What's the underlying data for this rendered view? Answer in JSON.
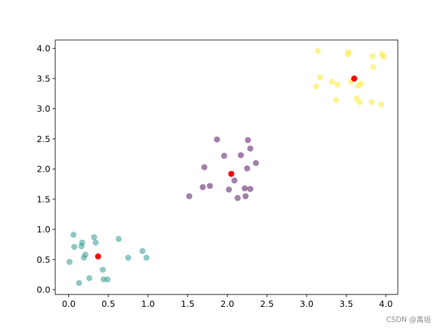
{
  "chart_data": {
    "type": "scatter",
    "title": "",
    "xlabel": "",
    "ylabel": "",
    "xlim": [
      -0.17,
      4.15
    ],
    "ylim": [
      -0.08,
      4.14
    ],
    "xticks": [
      "0.0",
      "0.5",
      "1.0",
      "1.5",
      "2.0",
      "2.5",
      "3.0",
      "3.5",
      "4.0"
    ],
    "yticks": [
      "0.0",
      "0.5",
      "1.0",
      "1.5",
      "2.0",
      "2.5",
      "3.0",
      "3.5",
      "4.0"
    ],
    "grid": false,
    "legend": "none",
    "series": [
      {
        "color": "#21918c",
        "opacity": 0.5,
        "points": [
          [
            0.01,
            0.46
          ],
          [
            0.06,
            0.91
          ],
          [
            0.07,
            0.71
          ],
          [
            0.13,
            0.11
          ],
          [
            0.16,
            0.72
          ],
          [
            0.17,
            0.78
          ],
          [
            0.19,
            0.53
          ],
          [
            0.21,
            0.58
          ],
          [
            0.26,
            0.19
          ],
          [
            0.32,
            0.87
          ],
          [
            0.34,
            0.78
          ],
          [
            0.43,
            0.33
          ],
          [
            0.44,
            0.17
          ],
          [
            0.49,
            0.17
          ],
          [
            0.63,
            0.84
          ],
          [
            0.75,
            0.53
          ],
          [
            0.93,
            0.64
          ],
          [
            0.98,
            0.53
          ]
        ]
      },
      {
        "color": "#440154",
        "opacity": 0.5,
        "points": [
          [
            1.52,
            1.55
          ],
          [
            1.69,
            1.7
          ],
          [
            1.71,
            2.03
          ],
          [
            1.78,
            1.72
          ],
          [
            1.87,
            2.49
          ],
          [
            1.96,
            2.22
          ],
          [
            2.02,
            1.66
          ],
          [
            2.09,
            1.81
          ],
          [
            2.13,
            1.52
          ],
          [
            2.17,
            2.23
          ],
          [
            2.22,
            1.68
          ],
          [
            2.23,
            1.55
          ],
          [
            2.25,
            2.01
          ],
          [
            2.26,
            2.48
          ],
          [
            2.29,
            2.34
          ],
          [
            2.29,
            1.67
          ],
          [
            2.36,
            2.1
          ]
        ]
      },
      {
        "color": "#fde725",
        "opacity": 0.5,
        "points": [
          [
            3.12,
            3.37
          ],
          [
            3.14,
            3.96
          ],
          [
            3.17,
            3.52
          ],
          [
            3.32,
            3.45
          ],
          [
            3.37,
            3.14
          ],
          [
            3.39,
            3.4
          ],
          [
            3.52,
            3.9
          ],
          [
            3.53,
            3.94
          ],
          [
            3.56,
            3.45
          ],
          [
            3.63,
            3.17
          ],
          [
            3.65,
            3.38
          ],
          [
            3.67,
            3.11
          ],
          [
            3.69,
            3.42
          ],
          [
            3.82,
            3.11
          ],
          [
            3.83,
            3.87
          ],
          [
            3.84,
            3.69
          ],
          [
            3.94,
            3.07
          ],
          [
            3.95,
            3.91
          ],
          [
            3.97,
            3.86
          ]
        ]
      },
      {
        "color": "#ff0000",
        "opacity": 1,
        "points": [
          [
            0.37,
            0.55
          ],
          [
            2.05,
            1.92
          ],
          [
            3.6,
            3.5
          ]
        ]
      }
    ]
  },
  "watermark": "CSDN @禹垣"
}
